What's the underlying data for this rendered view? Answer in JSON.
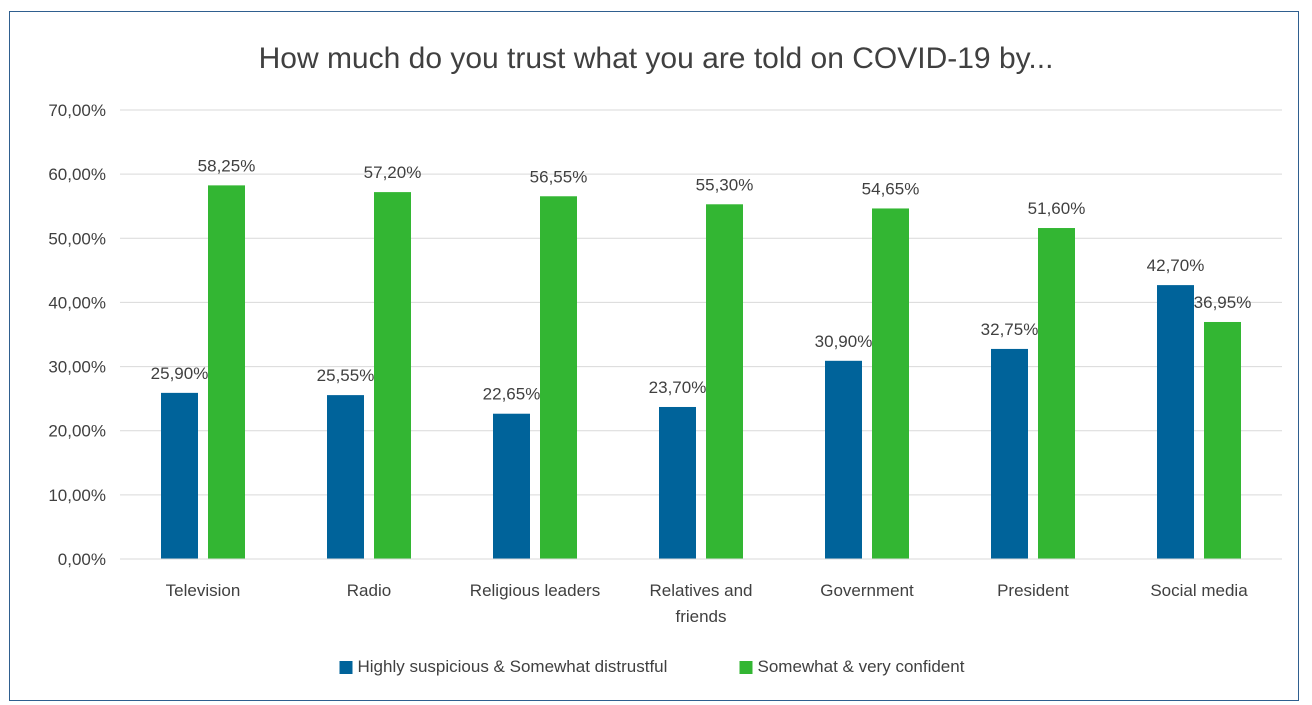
{
  "chart_data": {
    "type": "bar",
    "title": "How much do you trust what you are told on COVID-19 by...",
    "categories": [
      "Television",
      "Radio",
      "Religious leaders",
      "Relatives and friends",
      "Government",
      "President",
      "Social media"
    ],
    "category_lines": [
      [
        "Television"
      ],
      [
        "Radio"
      ],
      [
        "Religious leaders"
      ],
      [
        "Relatives and",
        "friends"
      ],
      [
        "Government"
      ],
      [
        "President"
      ],
      [
        "Social media"
      ]
    ],
    "series": [
      {
        "name": "Highly suspicious & Somewhat distrustful",
        "color": "#00639a",
        "values": [
          25.9,
          25.55,
          22.65,
          23.7,
          30.9,
          32.75,
          42.7
        ],
        "labels": [
          "25,90%",
          "25,55%",
          "22,65%",
          "23,70%",
          "30,90%",
          "32,75%",
          "42,70%"
        ]
      },
      {
        "name": "Somewhat & very confident",
        "color": "#33b633",
        "values": [
          58.25,
          57.2,
          56.55,
          55.3,
          54.65,
          51.6,
          36.95
        ],
        "labels": [
          "58,25%",
          "57,20%",
          "56,55%",
          "55,30%",
          "54,65%",
          "51,60%",
          "36,95%"
        ]
      }
    ],
    "ylim": [
      0,
      70
    ],
    "yticks": [
      0,
      10,
      20,
      30,
      40,
      50,
      60,
      70
    ],
    "ytick_labels": [
      "0,00%",
      "10,00%",
      "20,00%",
      "30,00%",
      "40,00%",
      "50,00%",
      "60,00%",
      "70,00%"
    ],
    "xlabel": "",
    "ylabel": "",
    "grid": true,
    "legend_position": "bottom"
  }
}
